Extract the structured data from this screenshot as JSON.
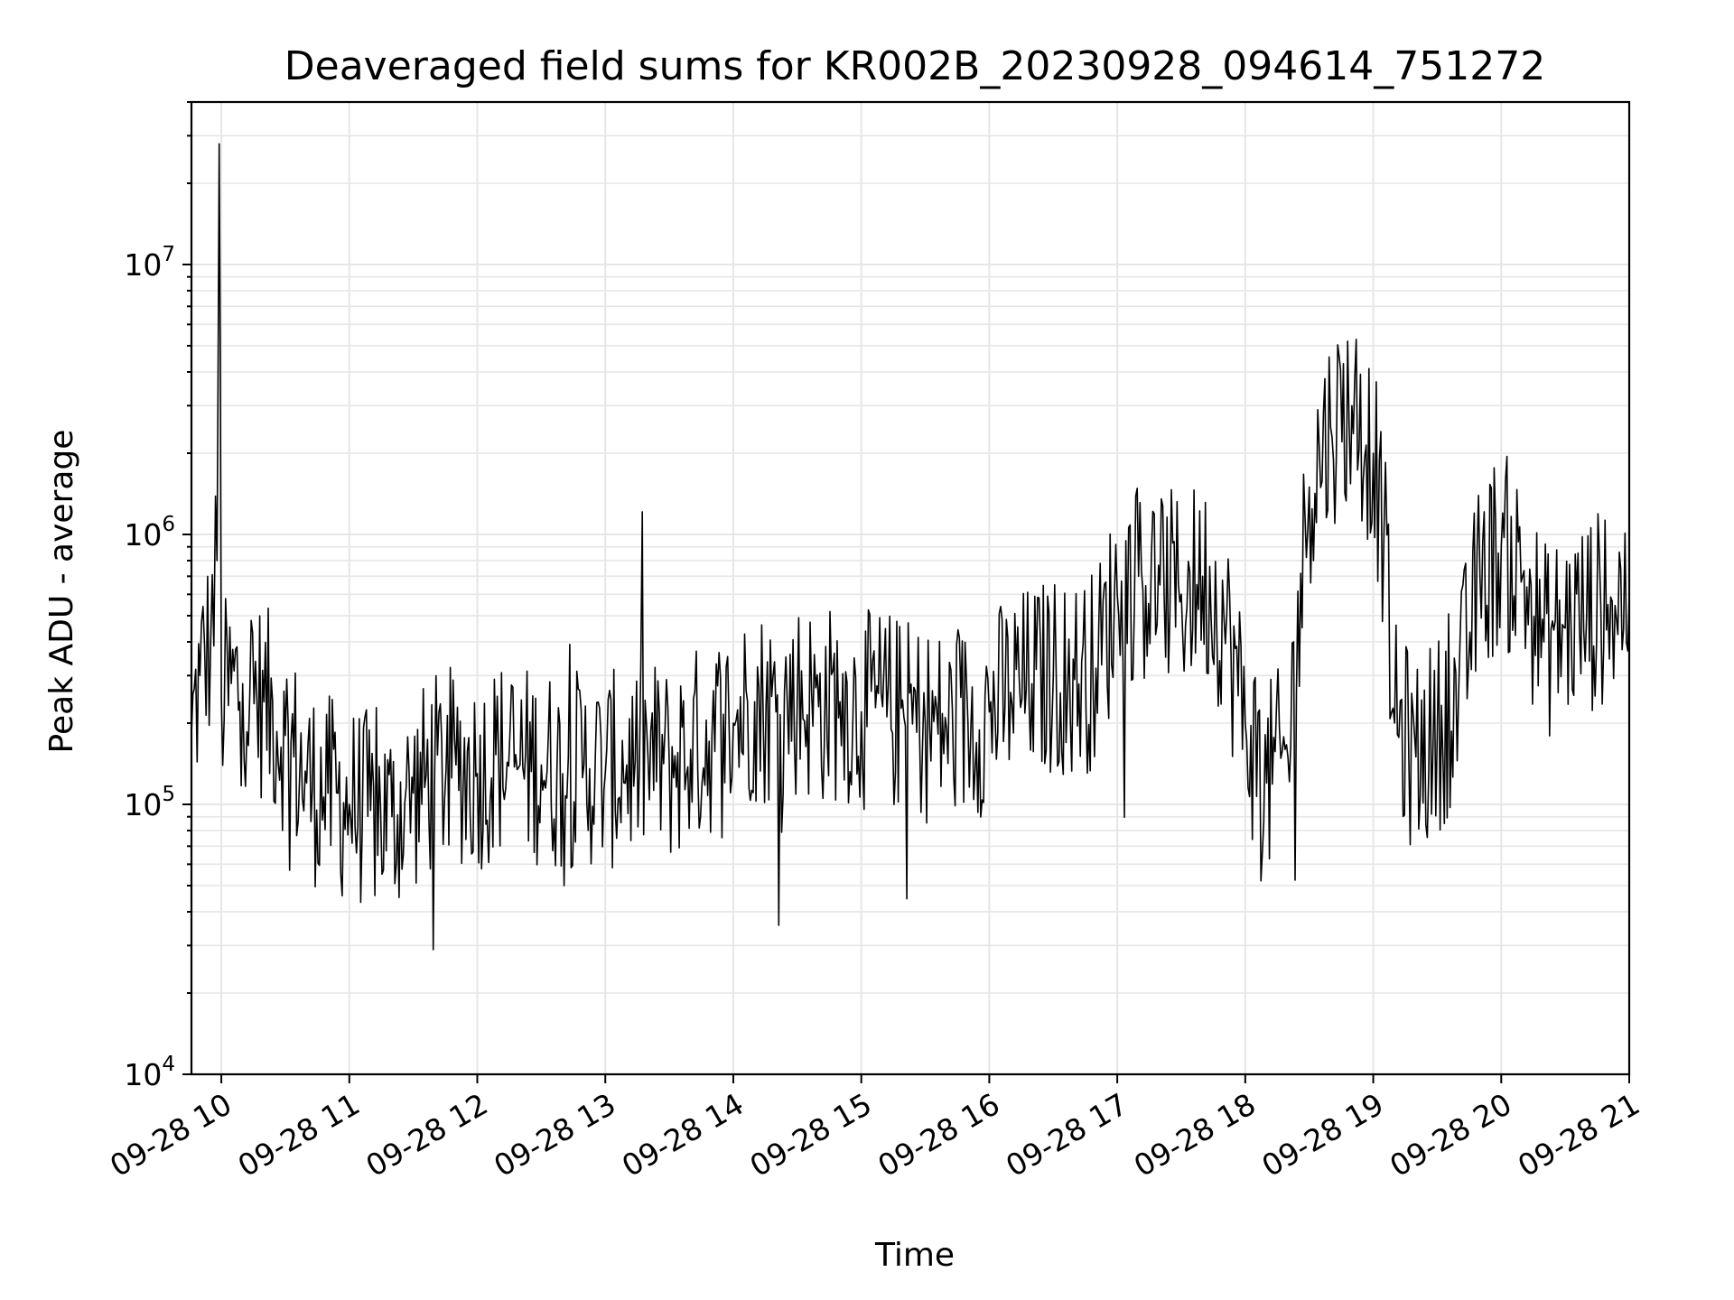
{
  "chart_data": {
    "type": "line",
    "title": "Deaveraged field sums for KR002B_20230928_094614_751272",
    "xlabel": "Time",
    "ylabel": "Peak ADU - average",
    "xlim": [
      "2023-09-28 09:46",
      "2023-09-28 21:00"
    ],
    "ylim": [
      10000,
      40000000
    ],
    "yscale": "log",
    "grid": true,
    "line_color": "#000000",
    "grid_color": "#e6e6e6",
    "x_ticks": [
      {
        "value": "2023-09-28 10:00",
        "label": "09-28 10"
      },
      {
        "value": "2023-09-28 11:00",
        "label": "09-28 11"
      },
      {
        "value": "2023-09-28 12:00",
        "label": "09-28 12"
      },
      {
        "value": "2023-09-28 13:00",
        "label": "09-28 13"
      },
      {
        "value": "2023-09-28 14:00",
        "label": "09-28 14"
      },
      {
        "value": "2023-09-28 15:00",
        "label": "09-28 15"
      },
      {
        "value": "2023-09-28 16:00",
        "label": "09-28 16"
      },
      {
        "value": "2023-09-28 17:00",
        "label": "09-28 17"
      },
      {
        "value": "2023-09-28 18:00",
        "label": "09-28 18"
      },
      {
        "value": "2023-09-28 19:00",
        "label": "09-28 19"
      },
      {
        "value": "2023-09-28 20:00",
        "label": "09-28 20"
      },
      {
        "value": "2023-09-28 21:00",
        "label": "09-28 21"
      }
    ],
    "y_ticks": [
      {
        "value": 10000,
        "base": "10",
        "exp": "4"
      },
      {
        "value": 100000,
        "base": "10",
        "exp": "5"
      },
      {
        "value": 1000000,
        "base": "10",
        "exp": "6"
      },
      {
        "value": 10000000,
        "base": "10",
        "exp": "7"
      }
    ],
    "series": [
      {
        "points": [
          [
            "2023-09-28 09:46",
            180000
          ],
          [
            "2023-09-28 09:50",
            300000
          ],
          [
            "2023-09-28 09:55",
            400000
          ],
          [
            "2023-09-28 09:58",
            800000
          ],
          [
            "2023-09-28 09:59",
            28000000
          ],
          [
            "2023-09-28 10:00",
            250000
          ],
          [
            "2023-09-28 10:10",
            280000
          ],
          [
            "2023-09-28 10:20",
            240000
          ],
          [
            "2023-09-28 10:30",
            180000
          ],
          [
            "2023-09-28 10:40",
            120000
          ],
          [
            "2023-09-28 10:50",
            110000
          ],
          [
            "2023-09-28 11:00",
            100000
          ],
          [
            "2023-09-28 11:10",
            95000
          ],
          [
            "2023-09-28 11:20",
            90000
          ],
          [
            "2023-09-28 11:30",
            110000
          ],
          [
            "2023-09-28 11:40",
            130000
          ],
          [
            "2023-09-28 11:50",
            140000
          ],
          [
            "2023-09-28 12:00",
            130000
          ],
          [
            "2023-09-28 12:10",
            150000
          ],
          [
            "2023-09-28 12:20",
            140000
          ],
          [
            "2023-09-28 12:30",
            140000
          ],
          [
            "2023-09-28 12:40",
            130000
          ],
          [
            "2023-09-28 12:50",
            140000
          ],
          [
            "2023-09-28 13:00",
            130000
          ],
          [
            "2023-09-28 13:10",
            140000
          ],
          [
            "2023-09-28 13:20",
            150000
          ],
          [
            "2023-09-28 13:30",
            140000
          ],
          [
            "2023-09-28 13:40",
            160000
          ],
          [
            "2023-09-28 13:50",
            180000
          ],
          [
            "2023-09-28 14:00",
            200000
          ],
          [
            "2023-09-28 14:10",
            240000
          ],
          [
            "2023-09-28 14:20",
            220000
          ],
          [
            "2023-09-28 14:30",
            250000
          ],
          [
            "2023-09-28 14:40",
            230000
          ],
          [
            "2023-09-28 14:50",
            240000
          ],
          [
            "2023-09-28 15:00",
            220000
          ],
          [
            "2023-09-28 15:10",
            230000
          ],
          [
            "2023-09-28 15:20",
            210000
          ],
          [
            "2023-09-28 15:30",
            200000
          ],
          [
            "2023-09-28 15:40",
            190000
          ],
          [
            "2023-09-28 15:50",
            200000
          ],
          [
            "2023-09-28 16:00",
            220000
          ],
          [
            "2023-09-28 16:10",
            260000
          ],
          [
            "2023-09-28 16:20",
            280000
          ],
          [
            "2023-09-28 16:30",
            300000
          ],
          [
            "2023-09-28 16:40",
            290000
          ],
          [
            "2023-09-28 16:50",
            320000
          ],
          [
            "2023-09-28 17:00",
            600000
          ],
          [
            "2023-09-28 17:10",
            700000
          ],
          [
            "2023-09-28 17:20",
            650000
          ],
          [
            "2023-09-28 17:30",
            600000
          ],
          [
            "2023-09-28 17:40",
            700000
          ],
          [
            "2023-09-28 17:50",
            500000
          ],
          [
            "2023-09-28 18:00",
            200000
          ],
          [
            "2023-09-28 18:10",
            120000
          ],
          [
            "2023-09-28 18:20",
            150000
          ],
          [
            "2023-09-28 18:30",
            1500000
          ],
          [
            "2023-09-28 18:40",
            2500000
          ],
          [
            "2023-09-28 18:50",
            3000000
          ],
          [
            "2023-09-28 19:00",
            2000000
          ],
          [
            "2023-09-28 19:05",
            1000000
          ],
          [
            "2023-09-28 19:10",
            200000
          ],
          [
            "2023-09-28 19:20",
            150000
          ],
          [
            "2023-09-28 19:30",
            180000
          ],
          [
            "2023-09-28 19:40",
            250000
          ],
          [
            "2023-09-28 19:50",
            700000
          ],
          [
            "2023-09-28 20:00",
            900000
          ],
          [
            "2023-09-28 20:10",
            700000
          ],
          [
            "2023-09-28 20:20",
            400000
          ],
          [
            "2023-09-28 20:30",
            450000
          ],
          [
            "2023-09-28 20:40",
            500000
          ],
          [
            "2023-09-28 20:50",
            550000
          ],
          [
            "2023-09-28 21:00",
            600000
          ]
        ]
      }
    ]
  }
}
